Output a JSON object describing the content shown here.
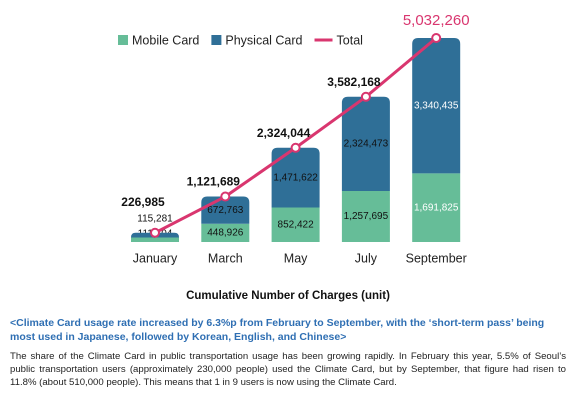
{
  "chart_data": {
    "type": "bar",
    "stacked": true,
    "categories": [
      "January",
      "March",
      "May",
      "July",
      "September"
    ],
    "series": [
      {
        "name": "Mobile Card",
        "color": "#66bd98",
        "values": [
          111704,
          448926,
          852422,
          1257695,
          1691825
        ],
        "value_labels": [
          "111,704",
          "448,926",
          "852,422",
          "1,257,695",
          "1,691,825"
        ]
      },
      {
        "name": "Physical Card",
        "color": "#2f6f97",
        "values": [
          115281,
          672763,
          1471622,
          2324473,
          3340435
        ],
        "value_labels": [
          "115,281",
          "672,763",
          "1,471,622",
          "2,324,473",
          "3,340,435"
        ]
      },
      {
        "name": "Total",
        "type": "line",
        "color": "#d9366f",
        "values": [
          226985,
          1121689,
          2324044,
          3582168,
          5032260
        ],
        "value_labels": [
          "226,985",
          "1,121,689",
          "2,324,044",
          "3,582,168",
          "5,032,260"
        ]
      }
    ],
    "x_label": "Cumulative Number of Charges (unit)"
  },
  "article": {
    "heading": "<Climate Card usage rate increased by 6.3%p from February to September, with the ‘short-term pass’ being most used in Japanese, followed by Korean, English, and Chinese>",
    "body": "The share of the Climate Card in public transportation usage has been growing rapidly. In February this year, 5.5% of Seoul’s public transportation users (approximately 230,000 people) used the Climate Card, but by September, that figure had risen to 11.8% (about 510,000 people). This means that 1 in 9 users is now using the Climate Card."
  }
}
